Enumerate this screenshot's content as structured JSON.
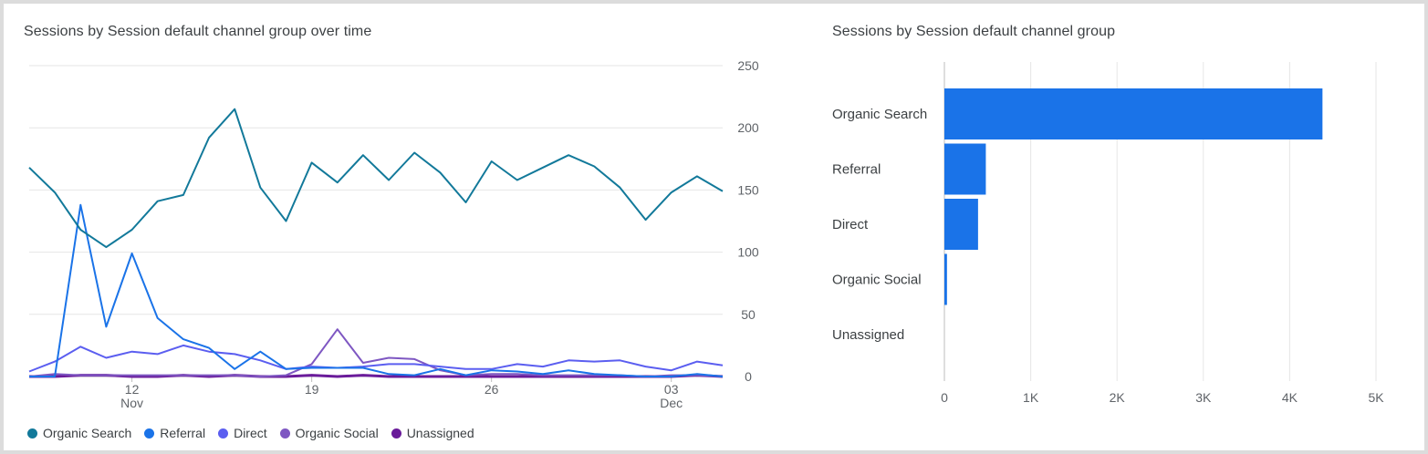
{
  "line_chart": {
    "title": "Sessions by Session default channel group over time",
    "legend": [
      {
        "name": "Organic Search",
        "color": "#12799a"
      },
      {
        "name": "Referral",
        "color": "#1a73e8"
      },
      {
        "name": "Direct",
        "color": "#5b5ef0"
      },
      {
        "name": "Organic Social",
        "color": "#7e57c2"
      },
      {
        "name": "Unassigned",
        "color": "#6a1b9a"
      }
    ]
  },
  "bar_chart": {
    "title": "Sessions by Session default channel group"
  },
  "chart_data": [
    {
      "type": "line",
      "title": "Sessions by Session default channel group over time",
      "x": [
        "Nov 8",
        "Nov 9",
        "Nov 10",
        "Nov 11",
        "Nov 12",
        "Nov 13",
        "Nov 14",
        "Nov 15",
        "Nov 16",
        "Nov 17",
        "Nov 18",
        "Nov 19",
        "Nov 20",
        "Nov 21",
        "Nov 22",
        "Nov 23",
        "Nov 24",
        "Nov 25",
        "Nov 26",
        "Nov 27",
        "Nov 28",
        "Nov 29",
        "Nov 30",
        "Dec 1",
        "Dec 2",
        "Dec 3",
        "Dec 4",
        "Dec 5"
      ],
      "x_ticks": [
        {
          "label": "12",
          "sublabel": "Nov",
          "index": 4
        },
        {
          "label": "19",
          "sublabel": "",
          "index": 11
        },
        {
          "label": "26",
          "sublabel": "",
          "index": 18
        },
        {
          "label": "03",
          "sublabel": "Dec",
          "index": 25
        }
      ],
      "y_ticks": [
        0,
        50,
        100,
        150,
        200,
        250
      ],
      "ylim": [
        0,
        250
      ],
      "y_axis_side": "right",
      "grid": true,
      "legend_position": "bottom",
      "series": [
        {
          "name": "Organic Search",
          "color": "#12799a",
          "values": [
            168,
            148,
            118,
            104,
            118,
            141,
            146,
            192,
            215,
            152,
            125,
            172,
            156,
            178,
            158,
            180,
            164,
            140,
            173,
            158,
            168,
            178,
            169,
            152,
            126,
            148,
            161,
            149
          ]
        },
        {
          "name": "Referral",
          "color": "#1a73e8",
          "values": [
            0,
            0,
            138,
            40,
            99,
            47,
            30,
            23,
            6,
            20,
            6,
            7,
            7,
            7,
            2,
            1,
            6,
            1,
            5,
            4,
            2,
            5,
            2,
            1,
            0,
            0,
            2,
            0
          ]
        },
        {
          "name": "Direct",
          "color": "#5b5ef0",
          "values": [
            4,
            12,
            24,
            15,
            20,
            18,
            25,
            20,
            18,
            13,
            6,
            8,
            7,
            8,
            10,
            10,
            8,
            6,
            6,
            10,
            8,
            13,
            12,
            13,
            8,
            5,
            12,
            9
          ]
        },
        {
          "name": "Organic Social",
          "color": "#7e57c2",
          "values": [
            0,
            2,
            1,
            1,
            1,
            1,
            1,
            1,
            1,
            0,
            1,
            10,
            38,
            11,
            15,
            14,
            5,
            1,
            2,
            2,
            1,
            1,
            1,
            1,
            0,
            1,
            1,
            0
          ]
        },
        {
          "name": "Unassigned",
          "color": "#6a1b9a",
          "values": [
            0,
            0,
            1,
            1,
            0,
            0,
            1,
            0,
            1,
            0,
            0,
            1,
            0,
            1,
            0,
            0,
            0,
            0,
            0,
            0,
            0,
            0,
            0,
            0,
            0,
            0,
            1,
            0
          ]
        }
      ]
    },
    {
      "type": "bar",
      "orientation": "horizontal",
      "title": "Sessions by Session default channel group",
      "categories": [
        "Organic Search",
        "Referral",
        "Direct",
        "Organic Social",
        "Unassigned"
      ],
      "values": [
        4380,
        480,
        390,
        30,
        0
      ],
      "x_ticks": [
        "0",
        "1K",
        "2K",
        "3K",
        "4K",
        "5K"
      ],
      "xlim": [
        0,
        5000
      ],
      "color": "#1a73e8",
      "grid": true
    }
  ]
}
